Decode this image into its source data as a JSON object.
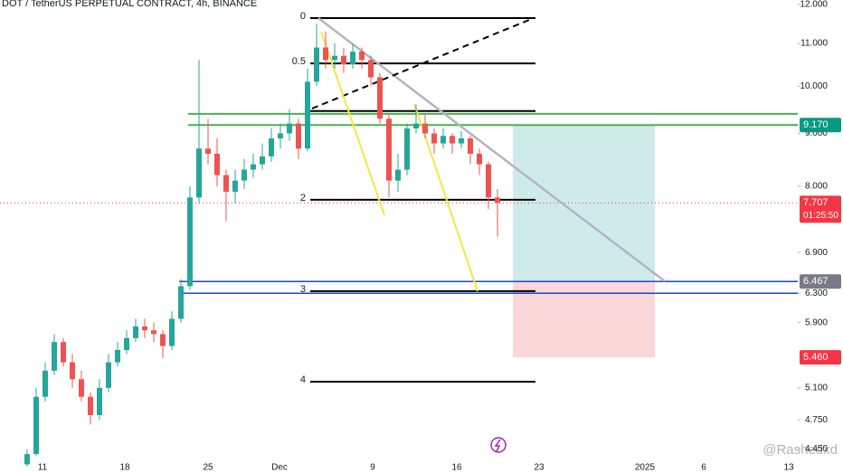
{
  "chart_data": {
    "type": "candlestick",
    "title": "DOT / TetherUS PERPETUAL CONTRACT, 4h, BINANCE",
    "log_scale": true,
    "ylim": [
      4.33,
      12.12
    ],
    "yticks": [
      {
        "value": 12,
        "label": "12.000"
      },
      {
        "value": 11,
        "label": "11.000"
      },
      {
        "value": 10,
        "label": "10.000"
      },
      {
        "value": 9,
        "label": "9.000"
      },
      {
        "value": 8,
        "label": "8.000"
      },
      {
        "value": 6.9,
        "label": "6.900"
      },
      {
        "value": 6.3,
        "label": "6.300"
      },
      {
        "value": 5.9,
        "label": "5.900"
      },
      {
        "value": 5.1,
        "label": "5.100"
      },
      {
        "value": 4.75,
        "label": "4.750"
      },
      {
        "value": 4.45,
        "label": "4.450"
      }
    ],
    "x_labels": [
      "11",
      "18",
      "25",
      "Dec",
      "9",
      "16",
      "23",
      "2025",
      "6",
      "13"
    ],
    "up_color": "#26a69a",
    "down_color": "#ef5350",
    "candles": [
      [
        4.3,
        4.45,
        4.28,
        4.4
      ],
      [
        4.4,
        5.1,
        4.38,
        5.0
      ],
      [
        5.0,
        5.4,
        4.95,
        5.3
      ],
      [
        5.3,
        5.75,
        5.25,
        5.65
      ],
      [
        5.65,
        5.7,
        5.35,
        5.4
      ],
      [
        5.4,
        5.5,
        5.1,
        5.2
      ],
      [
        5.2,
        5.3,
        4.95,
        5.0
      ],
      [
        5.0,
        5.05,
        4.7,
        4.8
      ],
      [
        4.8,
        5.2,
        4.75,
        5.1
      ],
      [
        5.1,
        5.5,
        5.05,
        5.4
      ],
      [
        5.4,
        5.65,
        5.35,
        5.55
      ],
      [
        5.55,
        5.8,
        5.5,
        5.7
      ],
      [
        5.7,
        5.95,
        5.65,
        5.85
      ],
      [
        5.85,
        5.95,
        5.7,
        5.8
      ],
      [
        5.8,
        5.9,
        5.65,
        5.75
      ],
      [
        5.75,
        5.8,
        5.45,
        5.6
      ],
      [
        5.6,
        6.05,
        5.55,
        5.95
      ],
      [
        5.95,
        6.5,
        5.9,
        6.4
      ],
      [
        6.4,
        8.0,
        6.35,
        7.8
      ],
      [
        7.8,
        10.6,
        7.7,
        8.7
      ],
      [
        8.7,
        9.3,
        8.4,
        8.6
      ],
      [
        8.6,
        8.9,
        8.0,
        8.2
      ],
      [
        8.2,
        8.3,
        7.4,
        7.9
      ],
      [
        7.9,
        8.3,
        7.7,
        8.1
      ],
      [
        8.1,
        8.5,
        7.95,
        8.3
      ],
      [
        8.3,
        8.6,
        8.15,
        8.4
      ],
      [
        8.4,
        8.8,
        8.3,
        8.55
      ],
      [
        8.55,
        9.1,
        8.45,
        8.9
      ],
      [
        8.9,
        9.2,
        8.7,
        9.0
      ],
      [
        9.0,
        9.5,
        8.85,
        9.2
      ],
      [
        9.2,
        9.3,
        8.5,
        8.7
      ],
      [
        8.7,
        10.4,
        8.65,
        10.1
      ],
      [
        10.1,
        11.5,
        10.0,
        10.9
      ],
      [
        10.9,
        11.3,
        10.4,
        10.6
      ],
      [
        10.6,
        11.0,
        10.4,
        10.7
      ],
      [
        10.7,
        10.9,
        10.3,
        10.5
      ],
      [
        10.5,
        11.0,
        10.4,
        10.8
      ],
      [
        10.8,
        10.9,
        10.4,
        10.6
      ],
      [
        10.6,
        10.7,
        10.0,
        10.2
      ],
      [
        10.2,
        10.3,
        9.2,
        9.3
      ],
      [
        9.3,
        9.4,
        7.8,
        8.1
      ],
      [
        8.1,
        8.6,
        7.9,
        8.3
      ],
      [
        8.3,
        9.2,
        8.2,
        9.1
      ],
      [
        9.1,
        9.6,
        9.0,
        9.2
      ],
      [
        9.2,
        9.4,
        8.9,
        9.0
      ],
      [
        9.0,
        9.1,
        8.6,
        8.8
      ],
      [
        8.8,
        9.1,
        8.7,
        8.95
      ],
      [
        8.95,
        9.0,
        8.6,
        8.8
      ],
      [
        8.8,
        9.05,
        8.7,
        8.9
      ],
      [
        8.9,
        8.95,
        8.4,
        8.6
      ],
      [
        8.6,
        8.7,
        8.2,
        8.4
      ],
      [
        8.4,
        8.45,
        7.6,
        7.8
      ],
      [
        7.8,
        7.95,
        7.15,
        7.707
      ]
    ],
    "fib_levels": [
      {
        "label": "0",
        "value": 11.64
      },
      {
        "label": "0.5",
        "value": 10.52
      },
      {
        "value": 9.46
      },
      {
        "label": "2",
        "value": 7.76
      },
      {
        "label": "3",
        "value": 6.33
      },
      {
        "label": "4",
        "value": 5.17
      }
    ],
    "green_lines": [
      9.4,
      9.17
    ],
    "blue_lines": [
      6.467,
      6.3
    ],
    "target_zone": [
      9.17,
      6.467
    ],
    "stop_zone": [
      6.467,
      5.46
    ],
    "price_tags": [
      {
        "label": "9.170",
        "value": 9.17,
        "color": "#089981"
      },
      {
        "label": "7.707",
        "value": 7.707,
        "color": "#f23645",
        "countdown": "01:25:50"
      },
      {
        "label": "6.467",
        "value": 6.467,
        "color": "#787b86"
      },
      {
        "label": "5.460",
        "value": 5.46,
        "color": "#f23645"
      }
    ],
    "watermark": "@Rashedxd"
  }
}
